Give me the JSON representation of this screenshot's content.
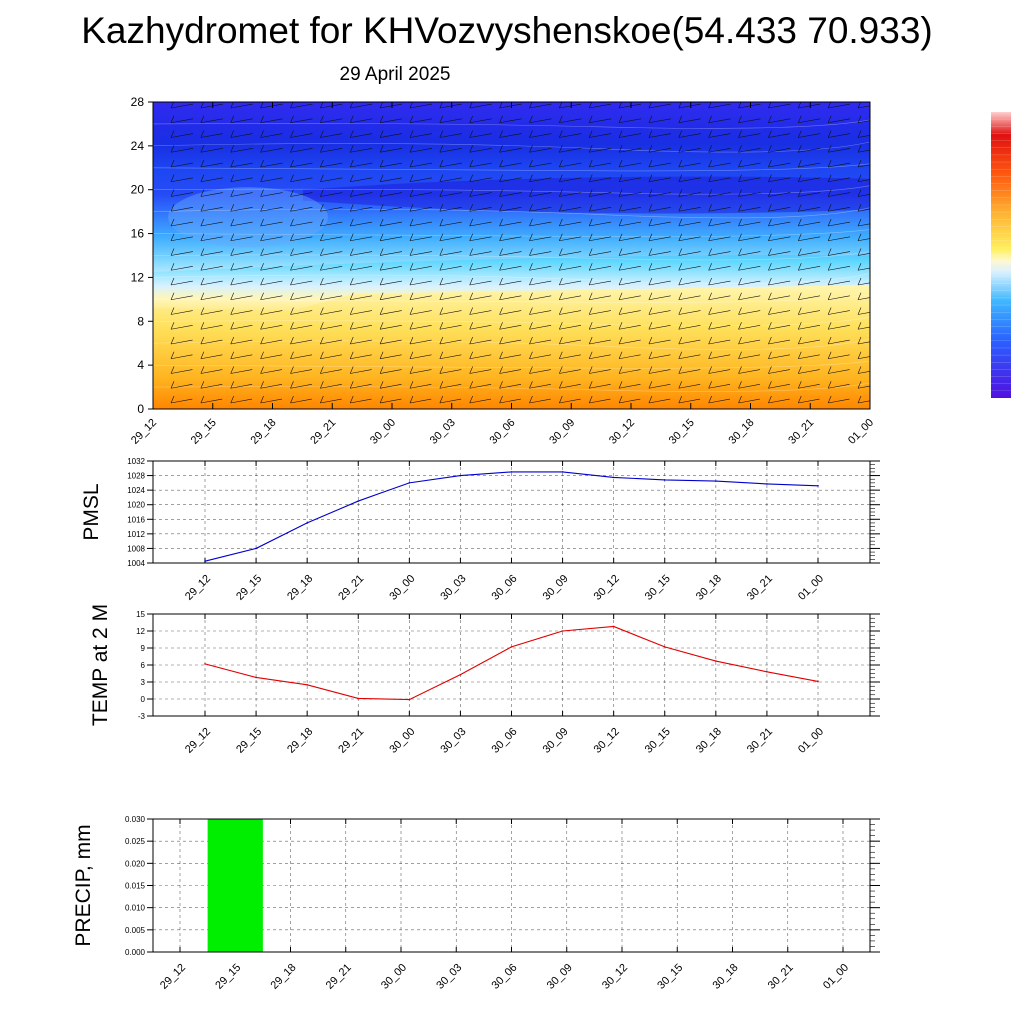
{
  "header": {
    "title": "Kazhydromet for KHVozvyshenskoe(54.433 70.933)",
    "subtitle": "29 April 2025"
  },
  "colors": {
    "pmsl_line": "#0000cc",
    "temp_line": "#e00000",
    "precip_bar": "#00ee00"
  },
  "chart_data": [
    {
      "id": "meteogram",
      "type": "heatmap",
      "x_ticks": [
        "29_12",
        "29_15",
        "29_18",
        "29_21",
        "30_00",
        "30_03",
        "30_06",
        "30_09",
        "30_12",
        "30_15",
        "30_18",
        "30_21",
        "01_00"
      ],
      "y_ticks": [
        "0",
        "4",
        "8",
        "12",
        "16",
        "20",
        "24",
        "28"
      ],
      "ylim": [
        0,
        28
      ],
      "colorbar": "blue-white-yellow-orange-red",
      "wind_barbs": true
    },
    {
      "id": "pmsl",
      "type": "line",
      "ylabel": "PMSL",
      "x": [
        "29_12",
        "29_15",
        "29_18",
        "29_21",
        "30_00",
        "30_03",
        "30_06",
        "30_09",
        "30_12",
        "30_15",
        "30_18",
        "30_21",
        "01_00"
      ],
      "values": [
        1004.5,
        1008,
        1015,
        1021,
        1026,
        1028,
        1029,
        1029,
        1027.5,
        1026.8,
        1026.5,
        1025.7,
        1025.2
      ],
      "y_ticks": [
        "1004",
        "1008",
        "1012",
        "1016",
        "1020",
        "1024",
        "1028",
        "1032"
      ],
      "ylim": [
        1004,
        1032
      ],
      "grid": true
    },
    {
      "id": "temp",
      "type": "line",
      "ylabel": "TEMP at 2 M",
      "x": [
        "29_12",
        "29_15",
        "29_18",
        "29_21",
        "30_00",
        "30_03",
        "30_06",
        "30_09",
        "30_12",
        "30_15",
        "30_18",
        "30_21",
        "01_00"
      ],
      "values": [
        6.2,
        3.8,
        2.5,
        0.1,
        -0.1,
        4.3,
        9.2,
        12.0,
        12.8,
        9.2,
        6.7,
        4.8,
        3.1
      ],
      "y_ticks": [
        "-3",
        "0",
        "3",
        "6",
        "9",
        "12",
        "15"
      ],
      "ylim": [
        -3,
        15
      ],
      "grid": true
    },
    {
      "id": "precip",
      "type": "bar",
      "ylabel": "PRECIP, mm",
      "x": [
        "29_12",
        "29_15",
        "29_18",
        "29_21",
        "30_00",
        "30_03",
        "30_06",
        "30_09",
        "30_12",
        "30_15",
        "30_18",
        "30_21",
        "01_00"
      ],
      "bars": [
        {
          "from": "29_12",
          "to": "29_15",
          "value": 0.03
        }
      ],
      "y_ticks": [
        "0.000",
        "0.005",
        "0.010",
        "0.015",
        "0.020",
        "0.025",
        "0.030"
      ],
      "ylim": [
        0,
        0.03
      ],
      "grid": true
    }
  ]
}
